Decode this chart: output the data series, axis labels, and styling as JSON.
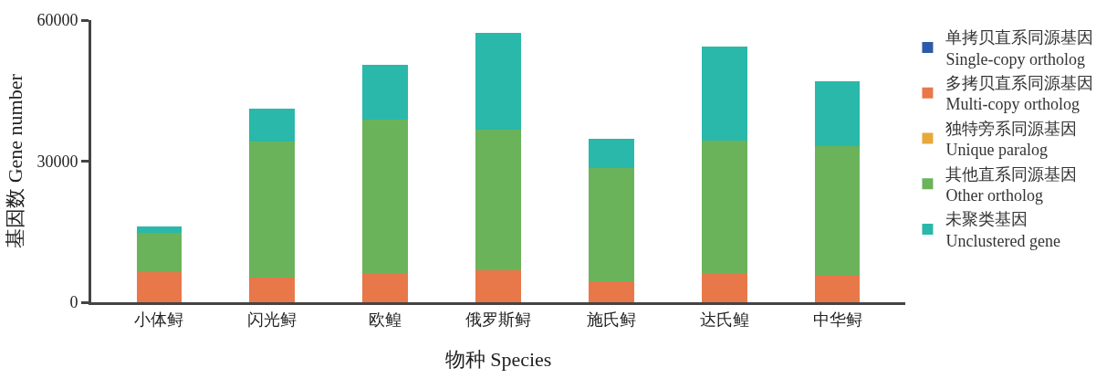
{
  "chart_data": {
    "type": "bar",
    "stacked": true,
    "xlabel": "物种 Species",
    "ylabel": "基因数 Gene number",
    "categories": [
      "小体鲟",
      "闪光鲟",
      "欧鳇",
      "俄罗斯鲟",
      "施氏鲟",
      "达氏鳇",
      "中华鲟"
    ],
    "series": [
      {
        "name": "单拷贝直系同源基因\nSingle-copy ortholog",
        "color": "#2e5aa8",
        "values": [
          0,
          0,
          0,
          0,
          0,
          0,
          0
        ]
      },
      {
        "name": "多拷贝直系同源基因\nMulti-copy ortholog",
        "color": "#e8784a",
        "values": [
          6500,
          5300,
          6300,
          6800,
          4400,
          6300,
          5700
        ]
      },
      {
        "name": "独特旁系同源基因\nUnique paralog",
        "color": "#e8a83a",
        "values": [
          0,
          0,
          0,
          0,
          0,
          0,
          0
        ]
      },
      {
        "name": "其他直系同源基因\nOther ortholog",
        "color": "#6ab35a",
        "values": [
          8300,
          28800,
          32600,
          29900,
          24100,
          28100,
          27500
        ]
      },
      {
        "name": "未聚类基因\nUnclustered gene",
        "color": "#2ab8aa",
        "values": [
          1300,
          7100,
          11600,
          20500,
          6300,
          19900,
          13700
        ]
      }
    ],
    "ylim": [
      0,
      60000
    ],
    "yticks": [
      0,
      30000,
      60000
    ],
    "grid": false,
    "legend": "right"
  }
}
